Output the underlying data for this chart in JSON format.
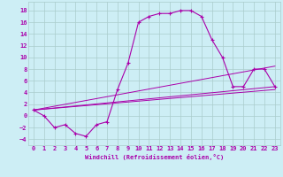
{
  "xlabel": "Windchill (Refroidissement éolien,°C)",
  "bg_color": "#cdeef5",
  "line_color": "#aa00aa",
  "grid_color": "#aacccc",
  "xlim": [
    -0.5,
    23.5
  ],
  "ylim": [
    -5,
    19.5
  ],
  "xticks": [
    0,
    1,
    2,
    3,
    4,
    5,
    6,
    7,
    8,
    9,
    10,
    11,
    12,
    13,
    14,
    15,
    16,
    17,
    18,
    19,
    20,
    21,
    22,
    23
  ],
  "yticks": [
    -4,
    -2,
    0,
    2,
    4,
    6,
    8,
    10,
    12,
    14,
    16,
    18
  ],
  "lines": [
    {
      "x": [
        0,
        1,
        2,
        3,
        4,
        5,
        6,
        7,
        8,
        9,
        10,
        11,
        12,
        13,
        14,
        15,
        16,
        17,
        18,
        19,
        20,
        21,
        22,
        23
      ],
      "y": [
        1,
        0,
        -2,
        -1.5,
        -3,
        -3.5,
        -1.5,
        -1,
        4.5,
        9,
        16,
        17,
        17.5,
        17.5,
        18,
        18,
        17,
        13,
        10,
        5,
        5,
        8,
        8,
        5
      ],
      "marker": true
    },
    {
      "x": [
        0,
        23
      ],
      "y": [
        1,
        5
      ],
      "marker": false
    },
    {
      "x": [
        0,
        23
      ],
      "y": [
        1,
        4.5
      ],
      "marker": false
    },
    {
      "x": [
        0,
        23
      ],
      "y": [
        1,
        8.5
      ],
      "marker": false
    }
  ],
  "label_fontsize": 5.0,
  "tick_fontsize": 5.0
}
